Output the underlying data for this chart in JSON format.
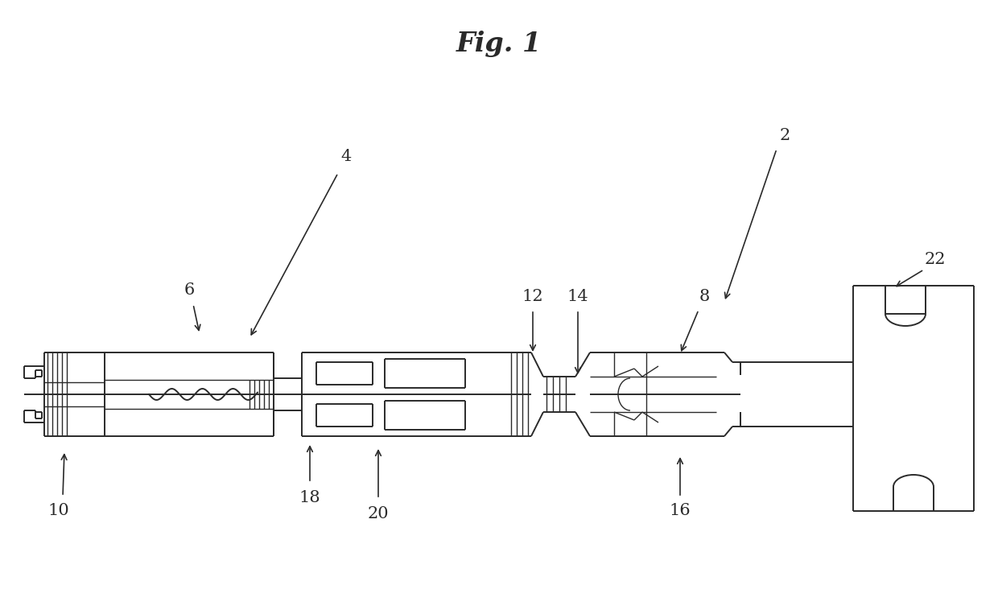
{
  "title": "Fig. 1",
  "title_fontsize": 24,
  "title_fontweight": "bold",
  "background_color": "#ffffff",
  "line_color": "#2a2a2a",
  "line_width": 1.4,
  "label_fontsize": 15
}
